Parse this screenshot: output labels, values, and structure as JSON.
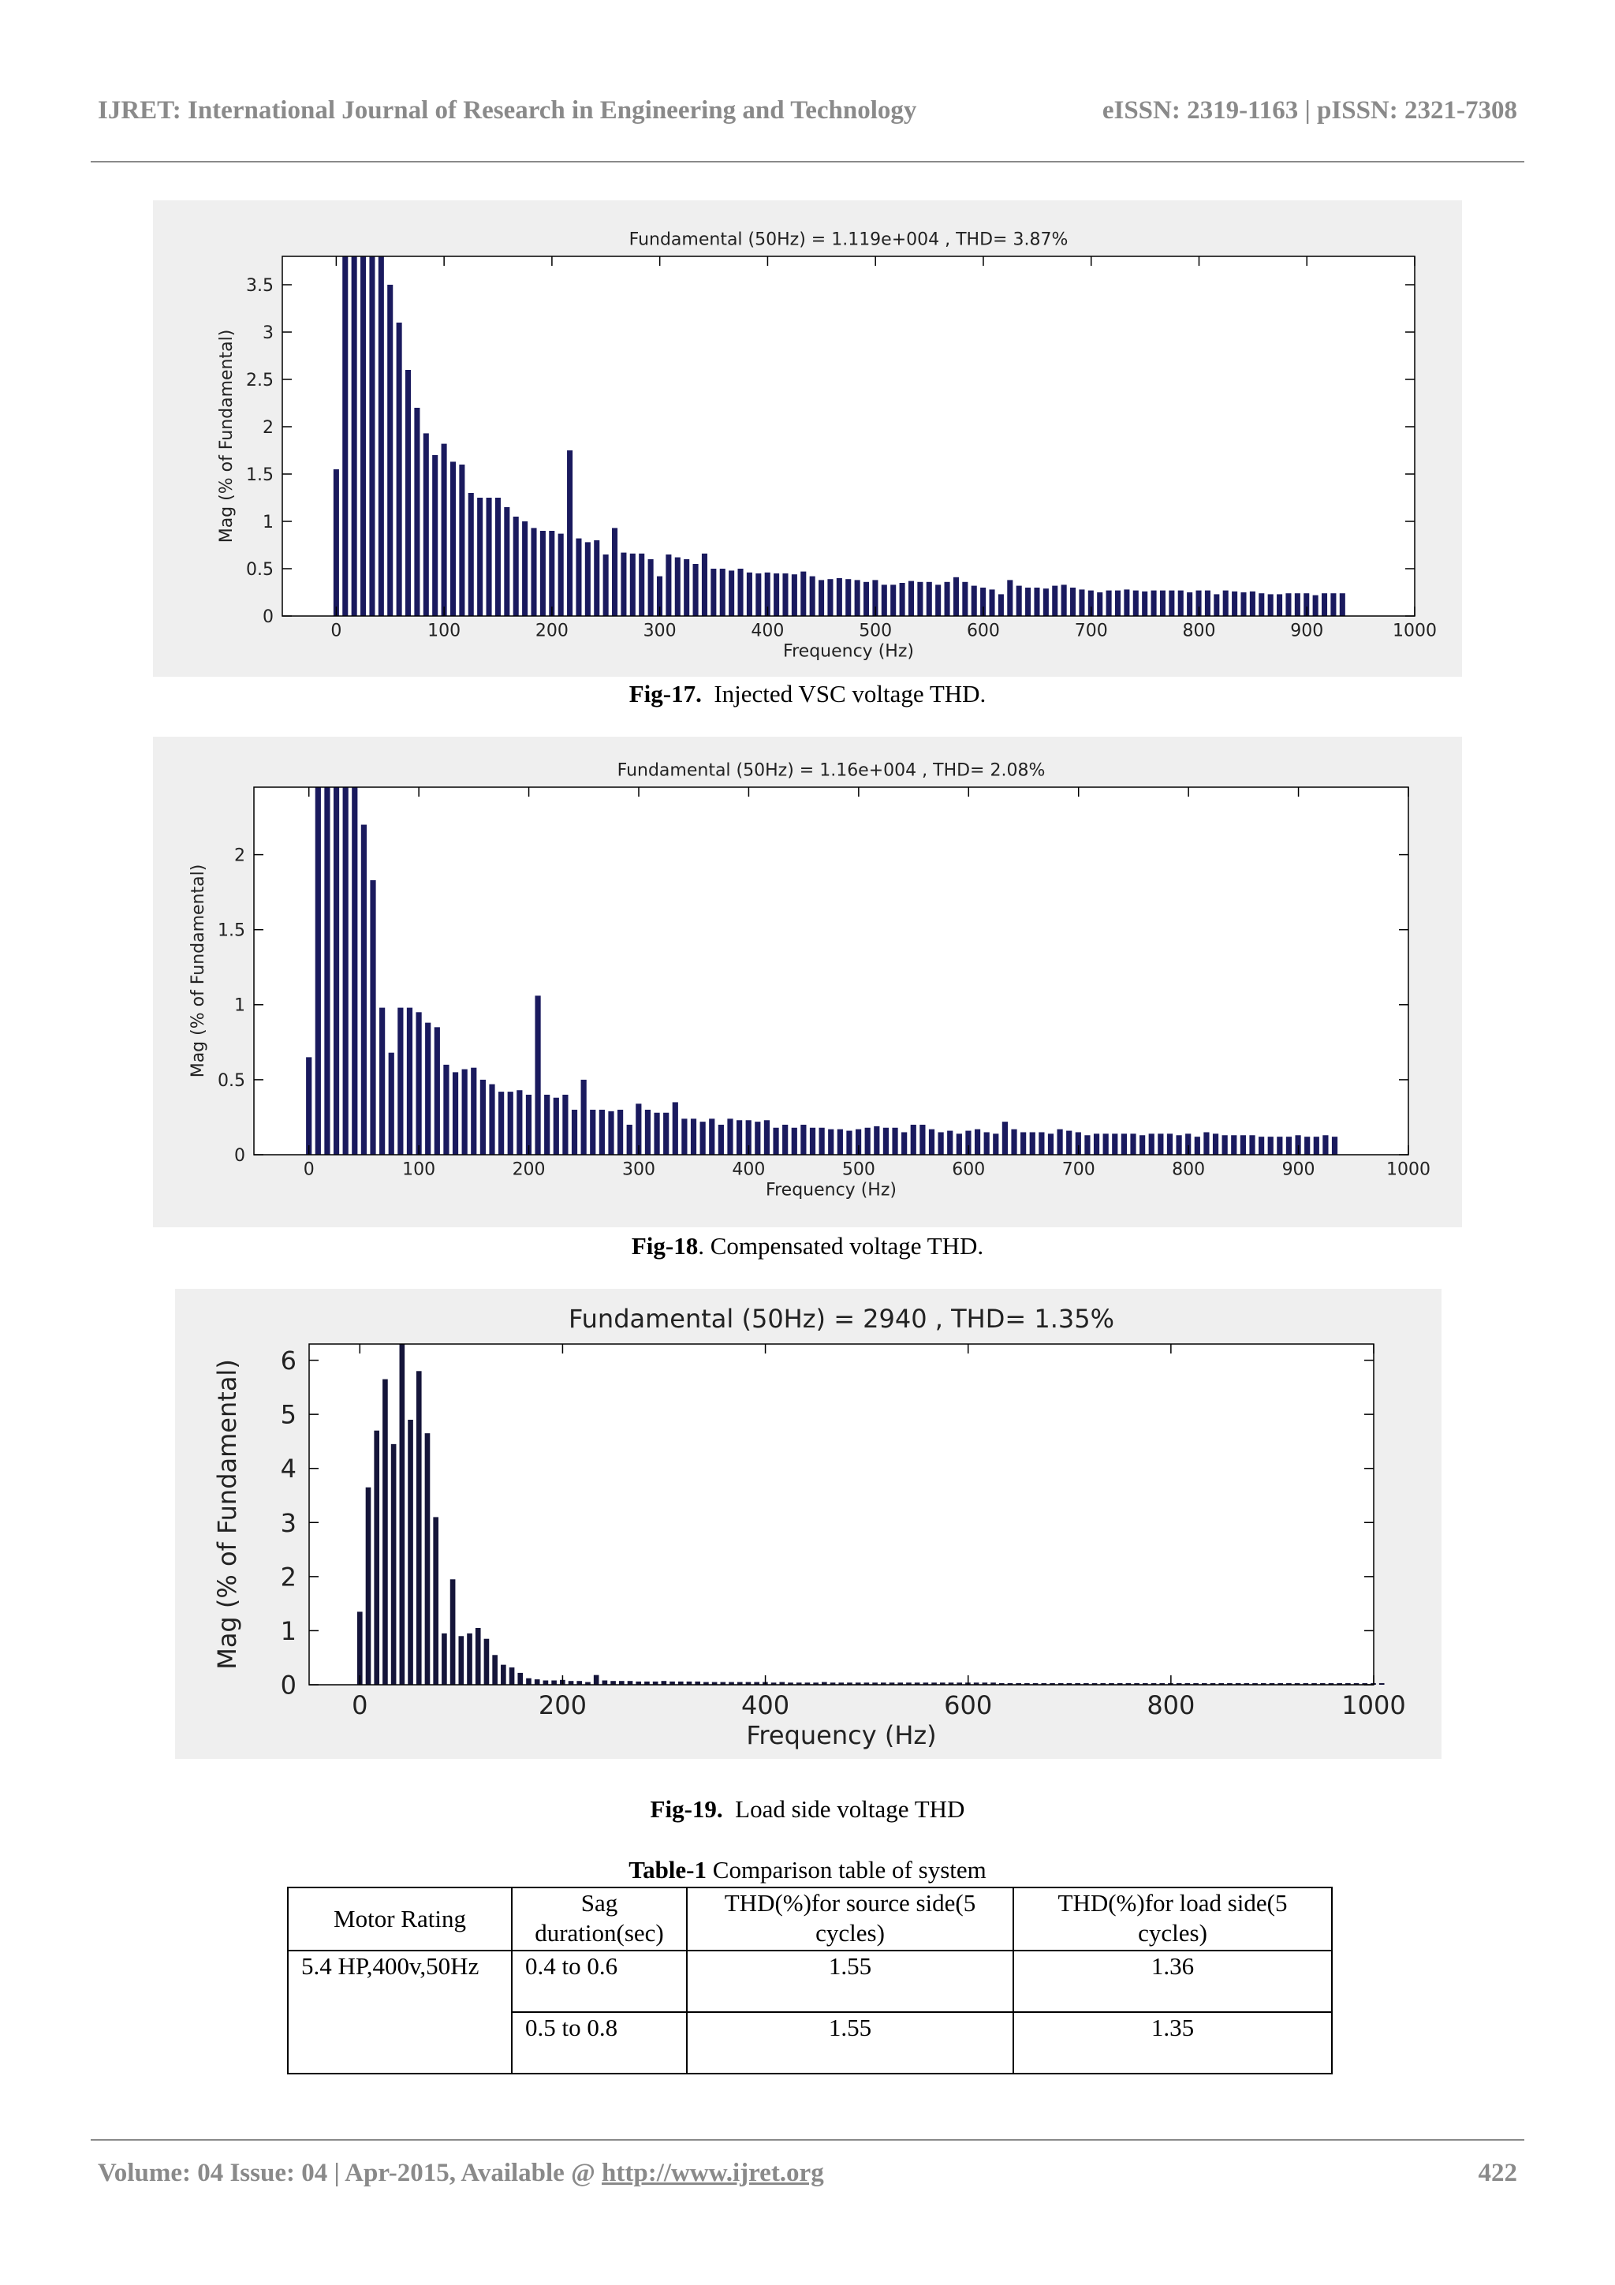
{
  "header": {
    "journal": "IJRET: International Journal of Research in Engineering and Technology",
    "issn": "eISSN: 2319-1163 | pISSN: 2321-7308"
  },
  "captions": {
    "fig17_label": "Fig-17.",
    "fig17_text": "Injected VSC voltage THD.",
    "fig18_label": "Fig-18",
    "fig18_text": ".  Compensated voltage THD.",
    "fig19_label": "Fig-19.",
    "fig19_text": "Load  side voltage THD"
  },
  "table": {
    "title_label": "Table-1",
    "title_text": " Comparison table of system",
    "headers": [
      "Motor Rating",
      "Sag duration(sec)",
      "THD(%)for source side(5 cycles)",
      "THD(%)for load side(5 cycles)"
    ],
    "rows": [
      [
        "5.4 HP,400v,50Hz",
        "0.4 to 0.6",
        "1.55",
        "1.36"
      ],
      [
        "",
        "0.5 to 0.8",
        "1.55",
        "1.35"
      ]
    ]
  },
  "footer": {
    "left_text": "Volume: 04 Issue: 04 | Apr-2015, Available @ ",
    "link": "http://www.ijret.org",
    "page": "422"
  },
  "chart_data": [
    {
      "type": "bar",
      "title": "Fundamental (50Hz) = 1.119e+004 , THD= 3.87%",
      "xlabel": "Frequency (Hz)",
      "ylabel": "Mag (% of Fundamental)",
      "xlim": [
        -50,
        1000
      ],
      "ylim": [
        0,
        3.8
      ],
      "xticks": [
        0,
        100,
        200,
        300,
        400,
        500,
        600,
        700,
        800,
        900,
        1000
      ],
      "yticks": [
        0,
        0.5,
        1,
        1.5,
        2,
        2.5,
        3,
        3.5
      ],
      "bar_step_hz": 8.33,
      "color": "#1a1a5e",
      "values": [
        1.55,
        3.8,
        3.8,
        3.8,
        3.8,
        3.8,
        3.5,
        3.1,
        2.6,
        2.2,
        1.93,
        1.7,
        1.82,
        1.63,
        1.6,
        1.3,
        1.25,
        1.25,
        1.25,
        1.15,
        1.05,
        1.0,
        0.93,
        0.9,
        0.9,
        0.87,
        1.75,
        0.82,
        0.78,
        0.8,
        0.65,
        0.93,
        0.67,
        0.66,
        0.66,
        0.6,
        0.42,
        0.65,
        0.62,
        0.6,
        0.55,
        0.66,
        0.5,
        0.5,
        0.48,
        0.5,
        0.46,
        0.45,
        0.46,
        0.45,
        0.45,
        0.44,
        0.47,
        0.42,
        0.38,
        0.39,
        0.4,
        0.39,
        0.38,
        0.36,
        0.38,
        0.33,
        0.33,
        0.35,
        0.37,
        0.36,
        0.36,
        0.33,
        0.36,
        0.41,
        0.36,
        0.32,
        0.3,
        0.28,
        0.23,
        0.38,
        0.32,
        0.3,
        0.3,
        0.29,
        0.32,
        0.33,
        0.3,
        0.28,
        0.27,
        0.25,
        0.27,
        0.27,
        0.28,
        0.27,
        0.26,
        0.27,
        0.27,
        0.27,
        0.27,
        0.25,
        0.27,
        0.27,
        0.23,
        0.27,
        0.26,
        0.25,
        0.26,
        0.24,
        0.23,
        0.23,
        0.24,
        0.24,
        0.24,
        0.22,
        0.24,
        0.24,
        0.24
      ]
    },
    {
      "type": "bar",
      "title": "Fundamental (50Hz) = 1.16e+004 , THD= 2.08%",
      "xlabel": "Frequency (Hz)",
      "ylabel": "Mag (% of Fundamental)",
      "xlim": [
        -50,
        1000
      ],
      "ylim": [
        0,
        2.45
      ],
      "xticks": [
        0,
        100,
        200,
        300,
        400,
        500,
        600,
        700,
        800,
        900,
        1000
      ],
      "yticks": [
        0,
        0.5,
        1,
        1.5,
        2
      ],
      "bar_step_hz": 8.33,
      "color": "#1a1a5e",
      "values": [
        0.65,
        2.45,
        2.45,
        2.45,
        2.45,
        2.45,
        2.2,
        1.83,
        0.98,
        0.68,
        0.98,
        0.98,
        0.95,
        0.88,
        0.85,
        0.6,
        0.55,
        0.57,
        0.58,
        0.5,
        0.47,
        0.42,
        0.42,
        0.43,
        0.4,
        1.06,
        0.4,
        0.38,
        0.4,
        0.3,
        0.5,
        0.3,
        0.3,
        0.29,
        0.3,
        0.2,
        0.34,
        0.3,
        0.28,
        0.28,
        0.35,
        0.24,
        0.24,
        0.22,
        0.24,
        0.2,
        0.24,
        0.23,
        0.23,
        0.22,
        0.23,
        0.18,
        0.2,
        0.18,
        0.2,
        0.18,
        0.18,
        0.17,
        0.17,
        0.16,
        0.17,
        0.18,
        0.19,
        0.18,
        0.18,
        0.15,
        0.2,
        0.2,
        0.17,
        0.15,
        0.16,
        0.14,
        0.16,
        0.17,
        0.15,
        0.14,
        0.22,
        0.17,
        0.15,
        0.15,
        0.15,
        0.14,
        0.17,
        0.16,
        0.15,
        0.13,
        0.14,
        0.14,
        0.14,
        0.14,
        0.14,
        0.13,
        0.14,
        0.14,
        0.14,
        0.13,
        0.14,
        0.12,
        0.15,
        0.14,
        0.13,
        0.13,
        0.13,
        0.13,
        0.12,
        0.12,
        0.12,
        0.12,
        0.13,
        0.12,
        0.12,
        0.13,
        0.12
      ]
    },
    {
      "type": "bar",
      "title": "Fundamental (50Hz) = 2940 , THD= 1.35%",
      "xlabel": "Frequency (Hz)",
      "ylabel": "Mag (% of Fundamental)",
      "xlim": [
        -50,
        1000
      ],
      "ylim": [
        0,
        6.3
      ],
      "xticks": [
        0,
        200,
        400,
        600,
        800,
        1000
      ],
      "yticks": [
        0,
        1,
        2,
        3,
        4,
        5,
        6
      ],
      "bar_step_hz": 8.33,
      "color": "#15153a",
      "values": [
        1.35,
        3.65,
        4.7,
        5.65,
        4.45,
        6.3,
        4.9,
        5.8,
        4.65,
        3.1,
        0.95,
        1.95,
        0.9,
        0.95,
        1.05,
        0.85,
        0.55,
        0.37,
        0.32,
        0.22,
        0.12,
        0.1,
        0.08,
        0.08,
        0.09,
        0.07,
        0.07,
        0.05,
        0.18,
        0.08,
        0.07,
        0.07,
        0.07,
        0.06,
        0.06,
        0.06,
        0.07,
        0.06,
        0.06,
        0.06,
        0.06,
        0.05,
        0.05,
        0.05,
        0.05,
        0.05,
        0.05,
        0.05,
        0.05,
        0.04,
        0.05,
        0.04,
        0.04,
        0.04,
        0.04,
        0.05,
        0.04,
        0.04,
        0.04,
        0.04,
        0.04,
        0.04,
        0.04,
        0.04,
        0.04,
        0.04,
        0.04,
        0.04,
        0.04,
        0.04,
        0.04,
        0.04,
        0.04,
        0.04,
        0.04,
        0.04,
        0.03,
        0.03,
        0.03,
        0.03,
        0.03,
        0.03,
        0.03,
        0.03,
        0.03,
        0.03,
        0.03,
        0.03,
        0.03,
        0.03,
        0.03,
        0.03,
        0.03,
        0.03,
        0.03,
        0.03,
        0.03,
        0.03,
        0.03,
        0.03,
        0.03,
        0.03,
        0.03,
        0.03,
        0.03,
        0.03,
        0.03,
        0.03,
        0.03,
        0.03,
        0.03,
        0.03,
        0.03,
        0.03,
        0.03,
        0.03,
        0.03,
        0.03,
        0.03,
        0.03,
        0.03,
        0.03
      ]
    }
  ]
}
